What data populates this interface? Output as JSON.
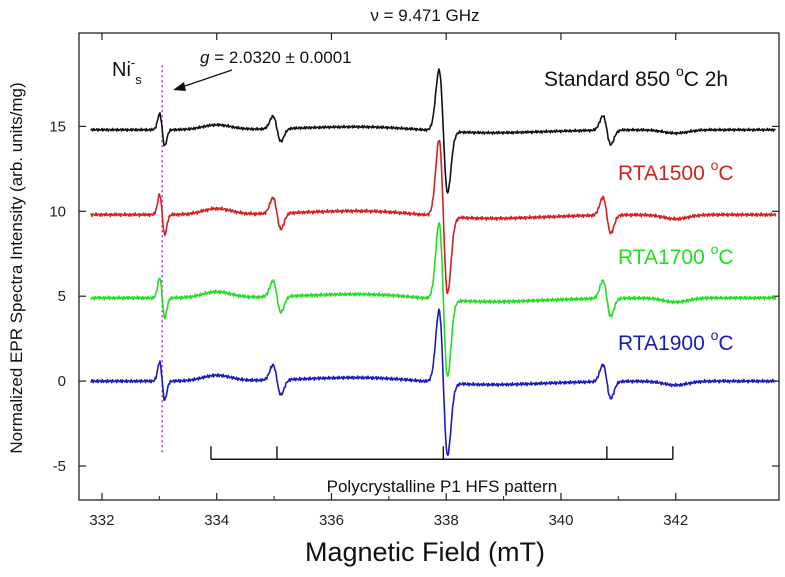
{
  "chart_data": {
    "type": "line",
    "title": "ν = 9.471 GHz",
    "xlabel": "Magnetic Field (mT)",
    "ylabel": "Normalized EPR Spectra Intensity (arb. units/mg)",
    "xlim": [
      331.6,
      343.8
    ],
    "ylim": [
      -7,
      20.5
    ],
    "xticks": [
      332,
      334,
      336,
      338,
      340,
      342
    ],
    "xtick_labels": [
      "332",
      "334",
      "336",
      "338",
      "340",
      "342"
    ],
    "yticks": [
      -5,
      0,
      5,
      10,
      15
    ],
    "ytick_labels": [
      "-5",
      "0",
      "5",
      "10",
      "15"
    ],
    "series": [
      {
        "name": "Standard 850 °C 2h",
        "label_main": "Standard 850 ",
        "label_deg": "o",
        "label_unit": "C 2h",
        "color": "#111111",
        "offset": 14.8,
        "amp": 1.0
      },
      {
        "name": "RTA1500 °C",
        "label_main": "RTA1500 ",
        "label_deg": "o",
        "label_unit": "C",
        "color": "#d42020",
        "offset": 9.8,
        "amp": 1.25
      },
      {
        "name": "RTA1700 °C",
        "label_main": "RTA1700 ",
        "label_deg": "o",
        "label_unit": "C",
        "color": "#22dd22",
        "offset": 4.9,
        "amp": 1.25
      },
      {
        "name": "RTA1900 °C",
        "label_main": "RTA1900 ",
        "label_deg": "o",
        "label_unit": "C",
        "color": "#1a1ab8",
        "offset": 0.0,
        "amp": 1.18
      }
    ],
    "features": {
      "ni_line": {
        "x": 333.05,
        "peak": 0.95,
        "trough": -1.0
      },
      "main_line": {
        "x": 337.95,
        "peak": 3.6,
        "trough": -3.6
      },
      "hf_lines": [
        {
          "x": 335.05,
          "amp": 0.75
        },
        {
          "x": 340.8,
          "amp": 0.85
        }
      ],
      "broad": [
        {
          "x": 334.0,
          "amp": 0.28
        },
        {
          "x": 342.0,
          "amp": -0.2
        }
      ]
    },
    "annotations": {
      "ni_label": "Ni",
      "ni_sup": "-",
      "ni_sub": "s",
      "g_symbol": "g",
      "g_value": " = 2.0320 ± 0.0001",
      "hfs_label": "Polycrystalline P1 HFS pattern",
      "ni_marker_x": 333.05,
      "hfs_ticks": [
        333.9,
        335.05,
        337.95,
        340.8,
        341.95
      ]
    }
  }
}
